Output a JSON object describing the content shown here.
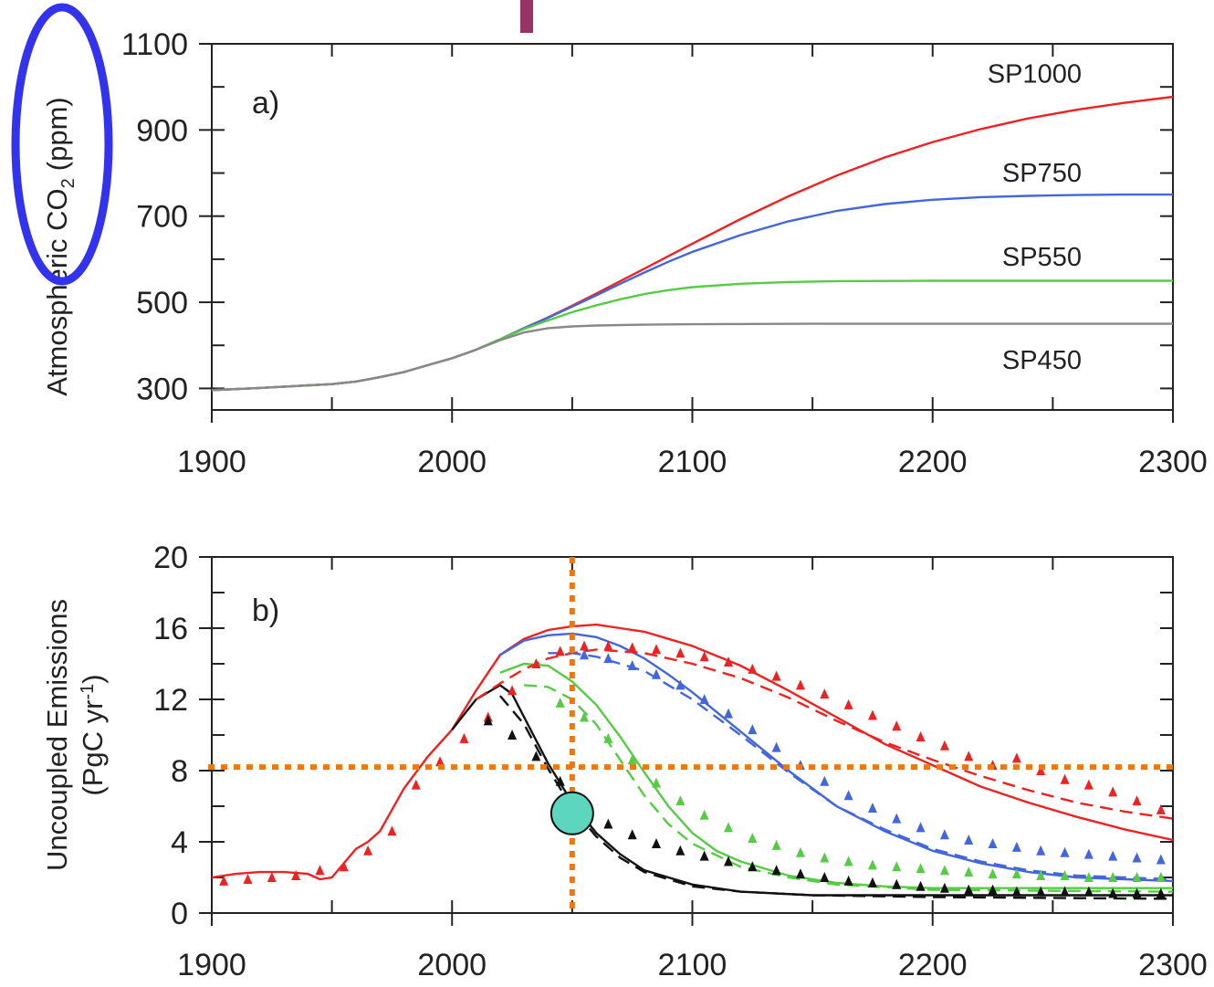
{
  "colors": {
    "red": "#ee2222",
    "blue": "#4466dd",
    "green": "#55cc44",
    "black": "#111111",
    "gray": "#888888",
    "orange": "#ee7711",
    "teal": "#5cd6bf",
    "highlight": "#3333ee",
    "maroon": "#993366"
  },
  "chart_data": [
    {
      "type": "line",
      "panel_label": "a)",
      "ylabel_main": "Atmospheric CO",
      "ylabel_sub": "2",
      "ylabel_unit": "(ppm)",
      "xlim": [
        1900,
        2300
      ],
      "ylim": [
        250,
        1100
      ],
      "x_ticks": [
        1900,
        2000,
        2100,
        2200,
        2300
      ],
      "x_minor_ticks": [
        1950,
        2050,
        2150,
        2250
      ],
      "y_ticks": [
        300,
        500,
        700,
        900,
        1100
      ],
      "y_minor_ticks": [
        400,
        600,
        800,
        1000
      ],
      "y_tick_labels": [
        "300",
        "500",
        "700",
        "900",
        "1100"
      ],
      "series": [
        {
          "name": "SP1000",
          "color": "red",
          "x": [
            1900,
            1920,
            1940,
            1950,
            1960,
            1970,
            1980,
            1990,
            2000,
            2010,
            2020,
            2030,
            2040,
            2050,
            2060,
            2070,
            2080,
            2090,
            2100,
            2120,
            2140,
            2160,
            2180,
            2200,
            2220,
            2240,
            2260,
            2280,
            2300
          ],
          "y": [
            296,
            301,
            307,
            310,
            316,
            326,
            338,
            354,
            370,
            390,
            414,
            440,
            465,
            492,
            520,
            549,
            578,
            607,
            636,
            693,
            746,
            794,
            836,
            872,
            902,
            927,
            947,
            963,
            977
          ]
        },
        {
          "name": "SP750",
          "color": "blue",
          "x": [
            1900,
            1920,
            1940,
            1950,
            1960,
            1970,
            1980,
            1990,
            2000,
            2010,
            2020,
            2030,
            2040,
            2050,
            2060,
            2070,
            2080,
            2090,
            2100,
            2120,
            2140,
            2160,
            2180,
            2200,
            2220,
            2240,
            2260,
            2280,
            2300
          ],
          "y": [
            296,
            301,
            307,
            310,
            316,
            326,
            338,
            354,
            370,
            390,
            414,
            440,
            464,
            490,
            516,
            543,
            569,
            594,
            617,
            656,
            688,
            712,
            728,
            738,
            744,
            747,
            749,
            750,
            750
          ]
        },
        {
          "name": "SP550",
          "color": "green",
          "x": [
            1900,
            1920,
            1940,
            1950,
            1960,
            1970,
            1980,
            1990,
            2000,
            2010,
            2020,
            2030,
            2040,
            2050,
            2060,
            2070,
            2080,
            2090,
            2100,
            2120,
            2140,
            2160,
            2200,
            2250,
            2300
          ],
          "y": [
            296,
            301,
            307,
            310,
            316,
            326,
            338,
            354,
            370,
            390,
            414,
            438,
            458,
            477,
            493,
            507,
            519,
            528,
            535,
            543,
            547,
            549,
            550,
            550,
            550
          ]
        },
        {
          "name": "SP450",
          "color": "gray",
          "x": [
            1900,
            1920,
            1940,
            1950,
            1960,
            1970,
            1980,
            1990,
            2000,
            2010,
            2020,
            2030,
            2040,
            2050,
            2060,
            2080,
            2100,
            2150,
            2200,
            2300
          ],
          "y": [
            296,
            301,
            307,
            310,
            316,
            326,
            338,
            354,
            370,
            390,
            412,
            430,
            440,
            444,
            446,
            448,
            449,
            450,
            450,
            450
          ]
        }
      ],
      "labels": [
        {
          "text": "SP1000",
          "x": 2262,
          "y": 1010
        },
        {
          "text": "SP750",
          "x": 2262,
          "y": 780
        },
        {
          "text": "SP550",
          "x": 2262,
          "y": 585
        },
        {
          "text": "SP450",
          "x": 2262,
          "y": 345
        }
      ]
    },
    {
      "type": "line",
      "panel_label": "b)",
      "ylabel_line1": "Uncoupled Emissions",
      "ylabel_line2": "(PgC yr",
      "ylabel_sup": "-1",
      "ylabel_end": ")",
      "xlim": [
        1900,
        2300
      ],
      "ylim": [
        0,
        20
      ],
      "x_ticks": [
        1900,
        2000,
        2100,
        2200,
        2300
      ],
      "x_minor_ticks": [
        1950,
        2050,
        2150,
        2250
      ],
      "y_ticks": [
        0,
        4,
        8,
        12,
        16,
        20
      ],
      "y_minor_ticks": [
        2,
        6,
        10,
        14,
        18
      ],
      "y_tick_labels": [
        "0",
        "4",
        "8",
        "12",
        "16",
        "20"
      ],
      "series": [
        {
          "name": "SP1000 solid",
          "color": "red",
          "style": "solid",
          "x": [
            1900,
            1910,
            1920,
            1930,
            1940,
            1945,
            1950,
            1955,
            1960,
            1965,
            1970,
            1980,
            1990,
            2000,
            2010,
            2020,
            2030,
            2040,
            2050,
            2060,
            2070,
            2080,
            2090,
            2100,
            2120,
            2140,
            2160,
            2180,
            2200,
            2220,
            2240,
            2260,
            2280,
            2300
          ],
          "y": [
            2.0,
            2.2,
            2.3,
            2.3,
            2.2,
            1.9,
            2.0,
            2.8,
            3.6,
            4.0,
            4.6,
            7.0,
            8.8,
            10.3,
            12.5,
            14.5,
            15.4,
            15.9,
            16.1,
            16.2,
            16.0,
            15.8,
            15.4,
            15.0,
            13.9,
            12.5,
            11.0,
            9.5,
            8.3,
            7.1,
            6.2,
            5.4,
            4.7,
            4.1
          ]
        },
        {
          "name": "SP750 solid",
          "color": "blue",
          "style": "solid",
          "x": [
            2020,
            2030,
            2040,
            2050,
            2060,
            2070,
            2080,
            2090,
            2100,
            2120,
            2140,
            2160,
            2180,
            2200,
            2220,
            2240,
            2260,
            2280,
            2300
          ],
          "y": [
            14.5,
            15.3,
            15.6,
            15.7,
            15.5,
            15.0,
            14.3,
            13.4,
            12.4,
            10.2,
            8.0,
            6.0,
            4.6,
            3.5,
            2.8,
            2.3,
            2.0,
            1.9,
            1.8
          ]
        },
        {
          "name": "SP550 solid",
          "color": "green",
          "style": "solid",
          "x": [
            2020,
            2030,
            2040,
            2050,
            2060,
            2070,
            2080,
            2090,
            2100,
            2110,
            2120,
            2140,
            2160,
            2180,
            2200,
            2240,
            2300
          ],
          "y": [
            13.5,
            14.0,
            13.9,
            13.0,
            11.7,
            9.9,
            7.9,
            6.0,
            4.5,
            3.5,
            2.9,
            2.1,
            1.7,
            1.5,
            1.4,
            1.4,
            1.4
          ]
        },
        {
          "name": "SP450 solid",
          "color": "black",
          "style": "solid",
          "x": [
            2000,
            2010,
            2020,
            2025,
            2030,
            2040,
            2050,
            2060,
            2070,
            2080,
            2100,
            2120,
            2150,
            2200,
            2300
          ],
          "y": [
            10.3,
            12.0,
            12.8,
            12.3,
            11.0,
            8.4,
            6.2,
            4.5,
            3.3,
            2.4,
            1.6,
            1.2,
            1.0,
            1.0,
            1.0
          ]
        },
        {
          "name": "SP1000 dashed",
          "color": "red",
          "style": "dashed",
          "x": [
            2010,
            2020,
            2030,
            2040,
            2050,
            2060,
            2080,
            2100,
            2120,
            2140,
            2160,
            2180,
            2200,
            2220,
            2240,
            2260,
            2280,
            2300
          ],
          "y": [
            12.0,
            12.9,
            13.7,
            14.3,
            14.6,
            14.8,
            14.6,
            14.0,
            13.2,
            12.1,
            10.8,
            9.6,
            8.6,
            7.7,
            6.9,
            6.2,
            5.7,
            5.3
          ]
        },
        {
          "name": "SP750 dashed",
          "color": "blue",
          "style": "dashed",
          "x": [
            2040,
            2050,
            2060,
            2080,
            2100,
            2120,
            2140,
            2160,
            2180,
            2200,
            2220,
            2240,
            2260,
            2280,
            2300
          ],
          "y": [
            14.6,
            14.6,
            14.4,
            13.6,
            12.0,
            10.0,
            7.9,
            6.0,
            4.7,
            3.6,
            2.9,
            2.4,
            2.1,
            2.0,
            1.9
          ]
        },
        {
          "name": "SP550 dashed",
          "color": "green",
          "style": "dashed",
          "x": [
            2030,
            2040,
            2050,
            2060,
            2070,
            2080,
            2090,
            2100,
            2120,
            2140,
            2160,
            2200,
            2300
          ],
          "y": [
            12.8,
            12.7,
            12.0,
            10.6,
            8.6,
            6.6,
            5.0,
            3.9,
            2.6,
            2.0,
            1.6,
            1.3,
            1.2
          ]
        },
        {
          "name": "SP450 dashed",
          "color": "black",
          "style": "dashed",
          "x": [
            2020,
            2030,
            2040,
            2050,
            2060,
            2070,
            2080,
            2100,
            2120,
            2150,
            2200,
            2300
          ],
          "y": [
            12.2,
            10.6,
            8.1,
            5.9,
            4.3,
            3.1,
            2.3,
            1.5,
            1.2,
            1.0,
            0.9,
            0.8
          ]
        }
      ],
      "markers": [
        {
          "color": "red",
          "x": [
            1905,
            1915,
            1925,
            1935,
            1945,
            1955,
            1965,
            1975,
            1985,
            1995,
            2005,
            2015,
            2025,
            2035,
            2045,
            2055,
            2065,
            2075,
            2085,
            2095,
            2105,
            2115,
            2125,
            2135,
            2145,
            2155,
            2165,
            2175,
            2185,
            2195,
            2205,
            2215,
            2225,
            2235,
            2245,
            2255,
            2265,
            2275,
            2285,
            2295
          ],
          "y": [
            1.8,
            1.9,
            2.0,
            2.1,
            2.4,
            2.6,
            3.5,
            4.6,
            7.2,
            8.5,
            9.8,
            11.0,
            12.5,
            14.0,
            14.7,
            15.0,
            15.0,
            14.9,
            14.8,
            14.6,
            14.4,
            14.1,
            13.7,
            13.3,
            12.8,
            12.3,
            11.7,
            11.1,
            10.5,
            9.9,
            9.4,
            8.8,
            8.3,
            8.7,
            8.0,
            7.5,
            7.2,
            6.8,
            6.3,
            5.8
          ]
        },
        {
          "color": "blue",
          "x": [
            2055,
            2065,
            2075,
            2085,
            2095,
            2105,
            2115,
            2125,
            2135,
            2145,
            2155,
            2165,
            2175,
            2185,
            2195,
            2205,
            2215,
            2225,
            2235,
            2245,
            2255,
            2265,
            2275,
            2285,
            2295
          ],
          "y": [
            14.5,
            14.3,
            13.9,
            13.4,
            12.8,
            12.0,
            11.2,
            10.3,
            9.3,
            8.3,
            7.4,
            6.6,
            5.9,
            5.3,
            4.8,
            4.4,
            4.1,
            3.9,
            3.7,
            3.5,
            3.4,
            3.3,
            3.2,
            3.1,
            3.0
          ]
        },
        {
          "color": "green",
          "x": [
            2045,
            2055,
            2065,
            2075,
            2085,
            2095,
            2105,
            2115,
            2125,
            2135,
            2145,
            2155,
            2165,
            2175,
            2185,
            2195,
            2205,
            2215,
            2225,
            2235,
            2245,
            2255,
            2265,
            2275,
            2285,
            2295
          ],
          "y": [
            11.8,
            11.0,
            9.8,
            8.6,
            7.3,
            6.3,
            5.5,
            4.8,
            4.2,
            3.8,
            3.4,
            3.1,
            2.9,
            2.7,
            2.6,
            2.5,
            2.4,
            2.3,
            2.2,
            2.2,
            2.1,
            2.1,
            2.0,
            2.0,
            2.0,
            2.0
          ]
        },
        {
          "color": "black",
          "x": [
            2015,
            2025,
            2035,
            2045,
            2055,
            2065,
            2075,
            2085,
            2095,
            2105,
            2115,
            2125,
            2135,
            2145,
            2155,
            2165,
            2175,
            2185,
            2195,
            2205,
            2215,
            2225,
            2235,
            2245,
            2255,
            2265,
            2275,
            2285,
            2295
          ],
          "y": [
            10.8,
            10.0,
            8.8,
            7.4,
            6.1,
            5.0,
            4.4,
            3.9,
            3.5,
            3.2,
            2.9,
            2.6,
            2.4,
            2.2,
            2.0,
            1.8,
            1.7,
            1.6,
            1.5,
            1.4,
            1.3,
            1.3,
            1.2,
            1.2,
            1.2,
            1.2,
            1.1,
            1.1,
            1.1
          ]
        }
      ],
      "annotations": {
        "vline_x": 2050,
        "hline_y": 8.2,
        "circle": {
          "x": 2050,
          "y": 5.6
        }
      }
    }
  ]
}
